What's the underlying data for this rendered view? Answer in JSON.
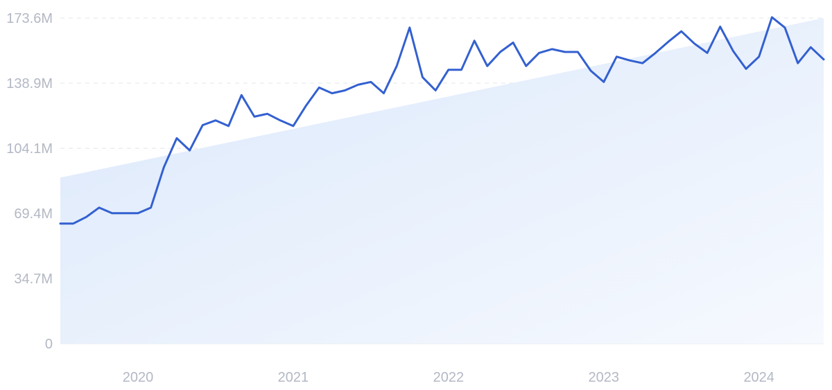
{
  "chart_data": {
    "type": "line",
    "title": "",
    "xlabel": "",
    "ylabel": "",
    "grid": true,
    "legend": "none",
    "colors": {
      "line": "#3360d0",
      "trend_fill_top": "#dbe8fb",
      "trend_fill_bottom": "#f6f9fe",
      "grid": "#e1e4ea",
      "tick_text": "#b3b8c4"
    },
    "ylim": [
      0,
      173.6
    ],
    "yticks": [
      {
        "value": 0,
        "label": "0"
      },
      {
        "value": 34.7,
        "label": "34.7M"
      },
      {
        "value": 69.4,
        "label": "69.4M"
      },
      {
        "value": 104.1,
        "label": "104.1M"
      },
      {
        "value": 138.9,
        "label": "138.9M"
      },
      {
        "value": 173.6,
        "label": "173.6M"
      }
    ],
    "xlim": [
      "2019-07",
      "2024-06"
    ],
    "xticks": [
      {
        "value": "2020-01",
        "label": "2020"
      },
      {
        "value": "2021-01",
        "label": "2021"
      },
      {
        "value": "2022-01",
        "label": "2022"
      },
      {
        "value": "2023-01",
        "label": "2023"
      },
      {
        "value": "2024-01",
        "label": "2024"
      }
    ],
    "trend": {
      "start": {
        "x": "2019-07",
        "y": 88.5
      },
      "end": {
        "x": "2024-06",
        "y": 173.6
      }
    },
    "series": [
      {
        "x": [
          "2019-07",
          "2019-08",
          "2019-09",
          "2019-10",
          "2019-11",
          "2019-12",
          "2020-01",
          "2020-02",
          "2020-03",
          "2020-04",
          "2020-05",
          "2020-06",
          "2020-07",
          "2020-08",
          "2020-09",
          "2020-10",
          "2020-11",
          "2020-12",
          "2021-01",
          "2021-02",
          "2021-03",
          "2021-04",
          "2021-05",
          "2021-06",
          "2021-07",
          "2021-08",
          "2021-09",
          "2021-10",
          "2021-11",
          "2021-12",
          "2022-01",
          "2022-02",
          "2022-03",
          "2022-04",
          "2022-05",
          "2022-06",
          "2022-07",
          "2022-08",
          "2022-09",
          "2022-10",
          "2022-11",
          "2022-12",
          "2023-01",
          "2023-02",
          "2023-03",
          "2023-04",
          "2023-05",
          "2023-06",
          "2023-07",
          "2023-08",
          "2023-09",
          "2023-10",
          "2023-11",
          "2023-12",
          "2024-01",
          "2024-02",
          "2024-03",
          "2024-04",
          "2024-05",
          "2024-06"
        ],
        "values": [
          64,
          64,
          67.5,
          72.5,
          69.5,
          69.5,
          69.5,
          72.5,
          94,
          109.5,
          103,
          116.5,
          119,
          116,
          132.5,
          121,
          122.5,
          119,
          116,
          127,
          136.5,
          133.5,
          135,
          138,
          139.5,
          133.5,
          148,
          168.5,
          142,
          135,
          146,
          146,
          161.5,
          148,
          155.5,
          160.5,
          148,
          155,
          157,
          155.5,
          155.5,
          145.5,
          139.5,
          153,
          151,
          149.5,
          155,
          161,
          166.5,
          160,
          155,
          169,
          156,
          146.5,
          153,
          174,
          168.5,
          149.5,
          158,
          151.5
        ]
      }
    ]
  }
}
